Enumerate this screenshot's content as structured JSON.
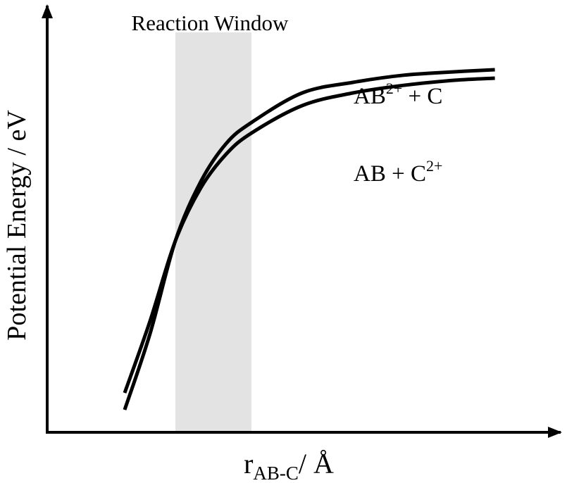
{
  "chart_data": {
    "type": "line",
    "title": "",
    "xlabel": {
      "main": "r",
      "subscript": "AB-C",
      "unit": "/ Å"
    },
    "ylabel": "Potential Energy / eV",
    "grid": false,
    "legend": "none",
    "xlim": [
      0,
      10
    ],
    "ylim": [
      0,
      10
    ],
    "shaded_region": {
      "label": "Reaction Window",
      "x": [
        2.5,
        4.0
      ],
      "color": "#e3e3e3"
    },
    "series": [
      {
        "label": {
          "base": "AB",
          "superscript": "2+",
          "suffix": " + C"
        },
        "color": "#000000",
        "x": [
          1.5,
          2.0,
          2.5,
          3.0,
          3.5,
          4.0,
          5.0,
          6.0,
          7.0,
          8.0,
          8.8
        ],
        "y": [
          0.5,
          2.3,
          4.5,
          5.9,
          6.8,
          7.3,
          8.0,
          8.25,
          8.42,
          8.5,
          8.55
        ]
      },
      {
        "label": {
          "base": "AB + C",
          "superscript": "2+",
          "suffix": ""
        },
        "color": "#000000",
        "x": [
          1.5,
          2.0,
          2.5,
          3.0,
          3.5,
          4.0,
          5.0,
          6.0,
          7.0,
          8.0,
          8.8
        ],
        "y": [
          0.9,
          2.6,
          4.5,
          5.75,
          6.55,
          7.05,
          7.7,
          8.0,
          8.18,
          8.3,
          8.35
        ]
      }
    ]
  }
}
